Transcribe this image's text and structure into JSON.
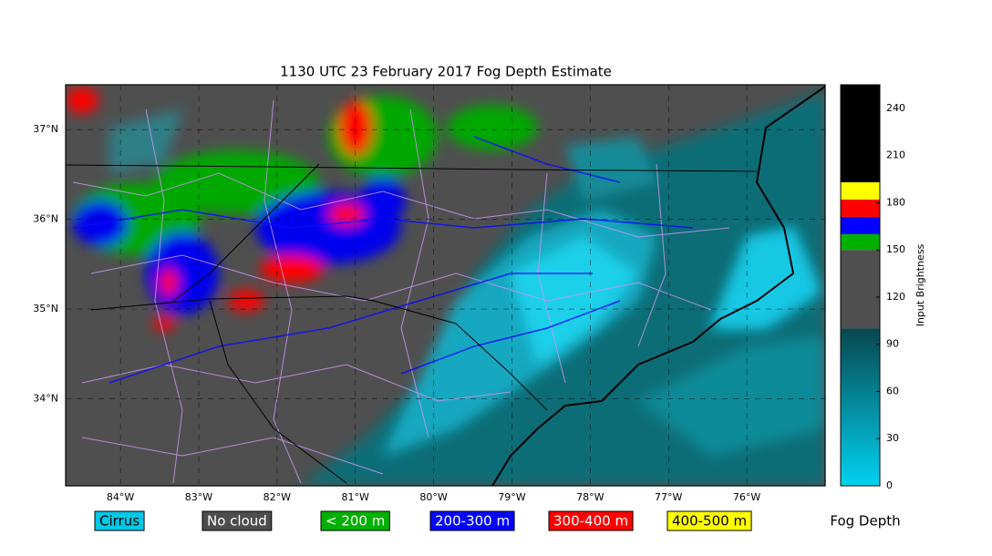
{
  "title": "1130 UTC 23 February 2017 Fog Depth Estimate",
  "map": {
    "xlim": [
      -84.7,
      -75.0
    ],
    "ylim": [
      33.03,
      37.5
    ],
    "xticks": [
      {
        "value": -84,
        "label": "84°W"
      },
      {
        "value": -83,
        "label": "83°W"
      },
      {
        "value": -82,
        "label": "82°W"
      },
      {
        "value": -81,
        "label": "81°W"
      },
      {
        "value": -80,
        "label": "80°W"
      },
      {
        "value": -79,
        "label": "79°W"
      },
      {
        "value": -78,
        "label": "78°W"
      },
      {
        "value": -77,
        "label": "77°W"
      },
      {
        "value": -76,
        "label": "76°W"
      }
    ],
    "yticks": [
      {
        "value": 34,
        "label": "34°N"
      },
      {
        "value": 35,
        "label": "35°N"
      },
      {
        "value": 36,
        "label": "36°N"
      },
      {
        "value": 37,
        "label": "37°N"
      }
    ]
  },
  "colorbar": {
    "label": "Input Brightness",
    "lim": [
      0,
      255
    ],
    "ticks": [
      0,
      30,
      60,
      90,
      120,
      150,
      180,
      210,
      240
    ],
    "segments": [
      {
        "range": [
          0,
          100
        ],
        "colors": [
          "#00d2f0",
          "#07474e"
        ]
      },
      {
        "range": [
          100,
          150
        ],
        "colors": [
          "#4f4f4f"
        ]
      },
      {
        "range": [
          150,
          160
        ],
        "colors": [
          "#00b000"
        ]
      },
      {
        "range": [
          160,
          171
        ],
        "colors": [
          "#0000ff"
        ]
      },
      {
        "range": [
          171,
          182
        ],
        "colors": [
          "#ff0000"
        ]
      },
      {
        "range": [
          182,
          193
        ],
        "colors": [
          "#ffff00"
        ]
      },
      {
        "range": [
          193,
          255
        ],
        "colors": [
          "#000000"
        ]
      }
    ]
  },
  "legend": {
    "title": "Fog Depth",
    "items": [
      {
        "name": "Cirrus",
        "color": "#00c8e8"
      },
      {
        "name": "No cloud",
        "color": "#4d4d4d"
      },
      {
        "name": "< 200 m",
        "color": "#00b000"
      },
      {
        "name": "200-300 m",
        "color": "#0000ff"
      },
      {
        "name": "300-400 m",
        "color": "#ff0000"
      },
      {
        "name": "400-500 m",
        "color": "#ffff00"
      }
    ]
  }
}
